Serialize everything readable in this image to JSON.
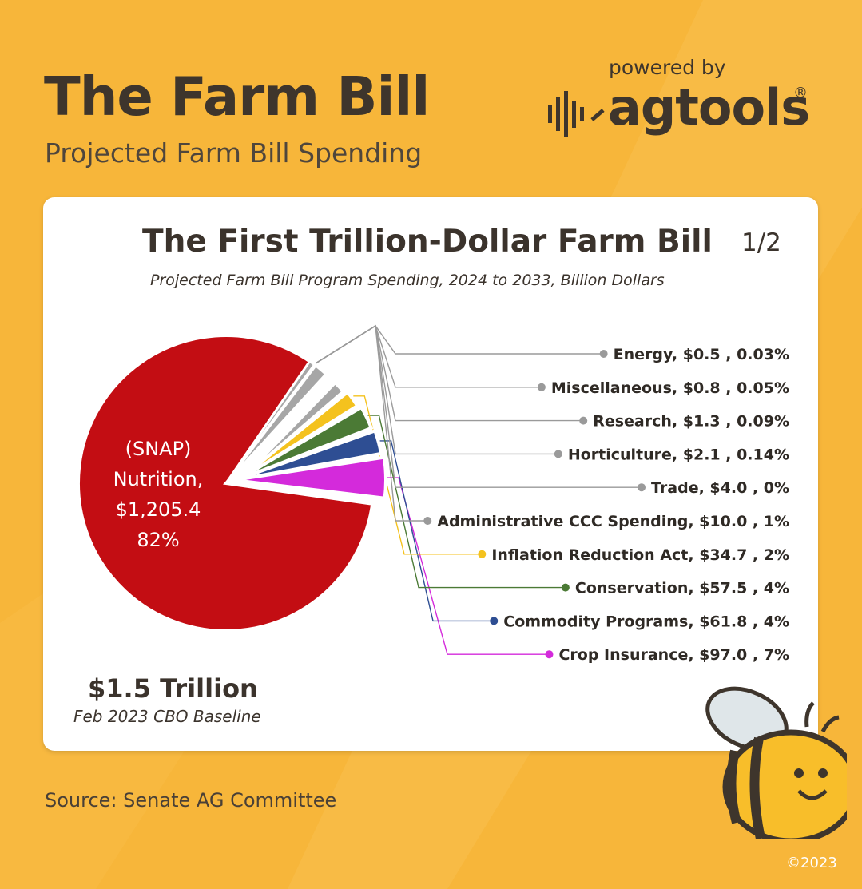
{
  "header": {
    "title": "The Farm Bill",
    "subtitle": "Projected Farm Bill Spending",
    "powered_by": "powered by",
    "brand": "agtools",
    "registered": "®"
  },
  "card": {
    "page_indicator": "1/2"
  },
  "chart_data": {
    "type": "pie",
    "title": "The First Trillion-Dollar Farm Bill",
    "subtitle": "Projected Farm Bill Program Spending, 2024 to 2033, Billion Dollars",
    "center_label": {
      "name": "(SNAP)",
      "category": "Nutrition,",
      "value": "$1,205.4",
      "percent": "82%"
    },
    "slices": [
      {
        "name": "Nutrition (SNAP)",
        "value": 1205.4,
        "percent": "82%",
        "color": "#c30d13"
      },
      {
        "name": "Crop Insurance",
        "value": 97.0,
        "percent": "7%",
        "color": "#d42adb",
        "label": "Crop Insurance, $97.0 , 7%"
      },
      {
        "name": "Commodity Programs",
        "value": 61.8,
        "percent": "4%",
        "color": "#2e4e93",
        "label": "Commodity Programs, $61.8 , 4%"
      },
      {
        "name": "Conservation",
        "value": 57.5,
        "percent": "4%",
        "color": "#4b7a35",
        "label": "Conservation, $57.5 , 4%"
      },
      {
        "name": "Inflation Reduction Act",
        "value": 34.7,
        "percent": "2%",
        "color": "#f4c21e",
        "label": "Inflation Reduction Act, $34.7 , 2%"
      },
      {
        "name": "Administrative CCC Spending",
        "value": 10.0,
        "percent": "1%",
        "color": "#a6a6a6",
        "label": "Administrative CCC Spending, $10.0 , 1%"
      },
      {
        "name": "Trade",
        "value": 4.0,
        "percent": "0%",
        "color": "#a6a6a6",
        "label": "Trade, $4.0 , 0%"
      },
      {
        "name": "Horticulture",
        "value": 2.1,
        "percent": "0.14%",
        "color": "#a6a6a6",
        "label": "Horticulture, $2.1 , 0.14%"
      },
      {
        "name": "Research",
        "value": 1.3,
        "percent": "0.09%",
        "color": "#a6a6a6",
        "label": "Research, $1.3 , 0.09%"
      },
      {
        "name": "Miscellaneous",
        "value": 0.8,
        "percent": "0.05%",
        "color": "#a6a6a6",
        "label": "Miscellaneous, $0.8 , 0.05%"
      },
      {
        "name": "Energy",
        "value": 0.5,
        "percent": "0.03%",
        "color": "#a6a6a6",
        "label": "Energy, $0.5 , 0.03%"
      }
    ],
    "total": "$1.5 Trillion",
    "baseline": "Feb 2023 CBO Baseline"
  },
  "footer": {
    "source": "Source: Senate AG Committee",
    "copyright": "©2023"
  }
}
